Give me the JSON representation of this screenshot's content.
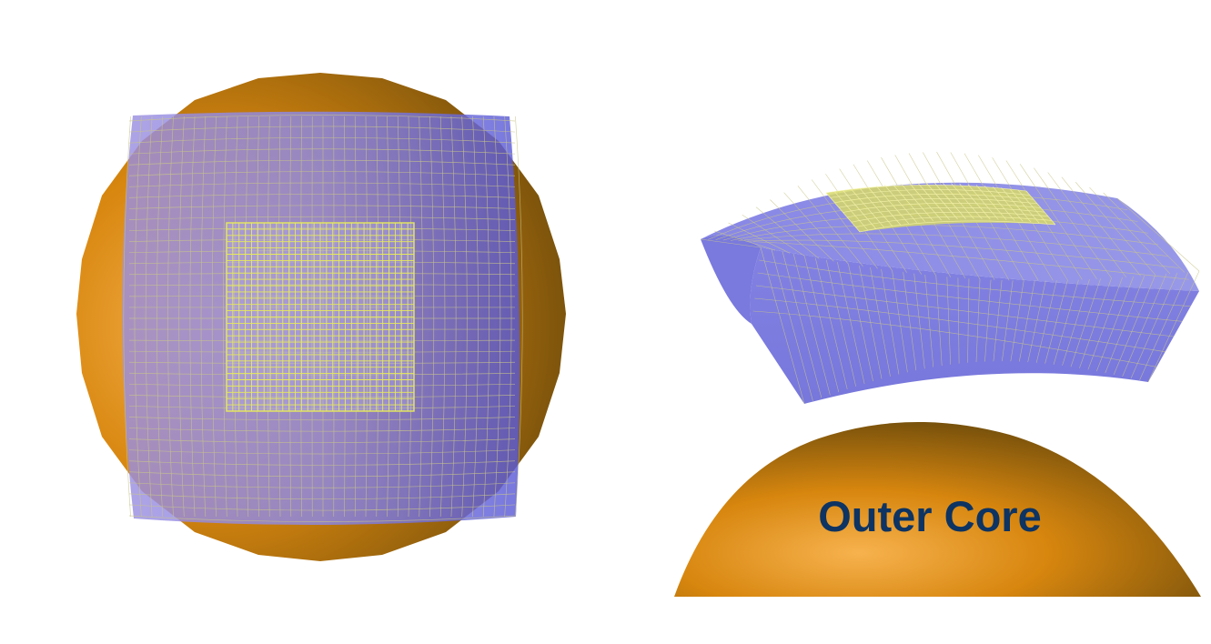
{
  "colors": {
    "background": "#ffffff",
    "core_light": "#f7b24e",
    "core_mid": "#d7860e",
    "core_dark": "#6e4c0c",
    "mesh_fill": "#6c6ddd",
    "mesh_line": "#c8c58a",
    "fine_mesh_line": "#e7ea5a",
    "fine_mesh_fill": "#d6d86a",
    "label": "#0d3463"
  },
  "left_view": {
    "core": "sphere",
    "coarse_mesh": "cubed-sphere-face",
    "refined_region": "square-patch"
  },
  "right_view": {
    "core": "sphere-cap",
    "coarse_mesh": "curved-shell-slab",
    "refined_region": "top-patch",
    "core_label": "Outer Core"
  }
}
